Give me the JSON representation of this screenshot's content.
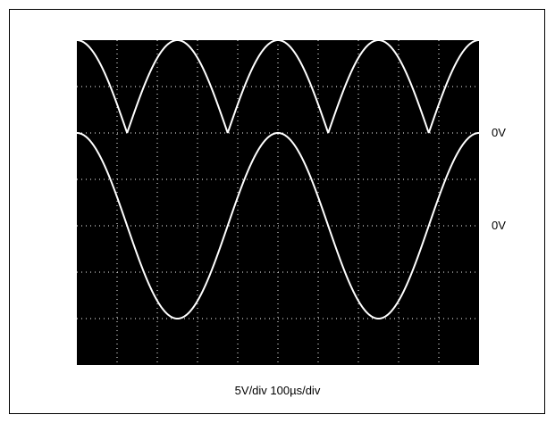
{
  "chart_data": {
    "type": "line",
    "title": "",
    "settings_label": "5V/div 100µs/div",
    "volts_per_div": 5,
    "time_per_div_us": 100,
    "grid": true,
    "divisions": {
      "x": 10,
      "y": 7
    },
    "background_color": "#000000",
    "trace_color": "#ffffff",
    "grid_color": "#ffffff",
    "channels": [
      {
        "zero_label": "0V",
        "ground_div": 2,
        "waveform": "full-wave rectified sine",
        "peak_volts": 10,
        "period_us": 250,
        "first_zero_us": 125,
        "x_range_us": [
          0,
          1000
        ]
      },
      {
        "zero_label": "0V",
        "ground_div": 4,
        "waveform": "sine",
        "peak_volts": 10,
        "period_us": 500,
        "phase": "cosine",
        "x_range_us": [
          0,
          1000
        ]
      }
    ]
  }
}
